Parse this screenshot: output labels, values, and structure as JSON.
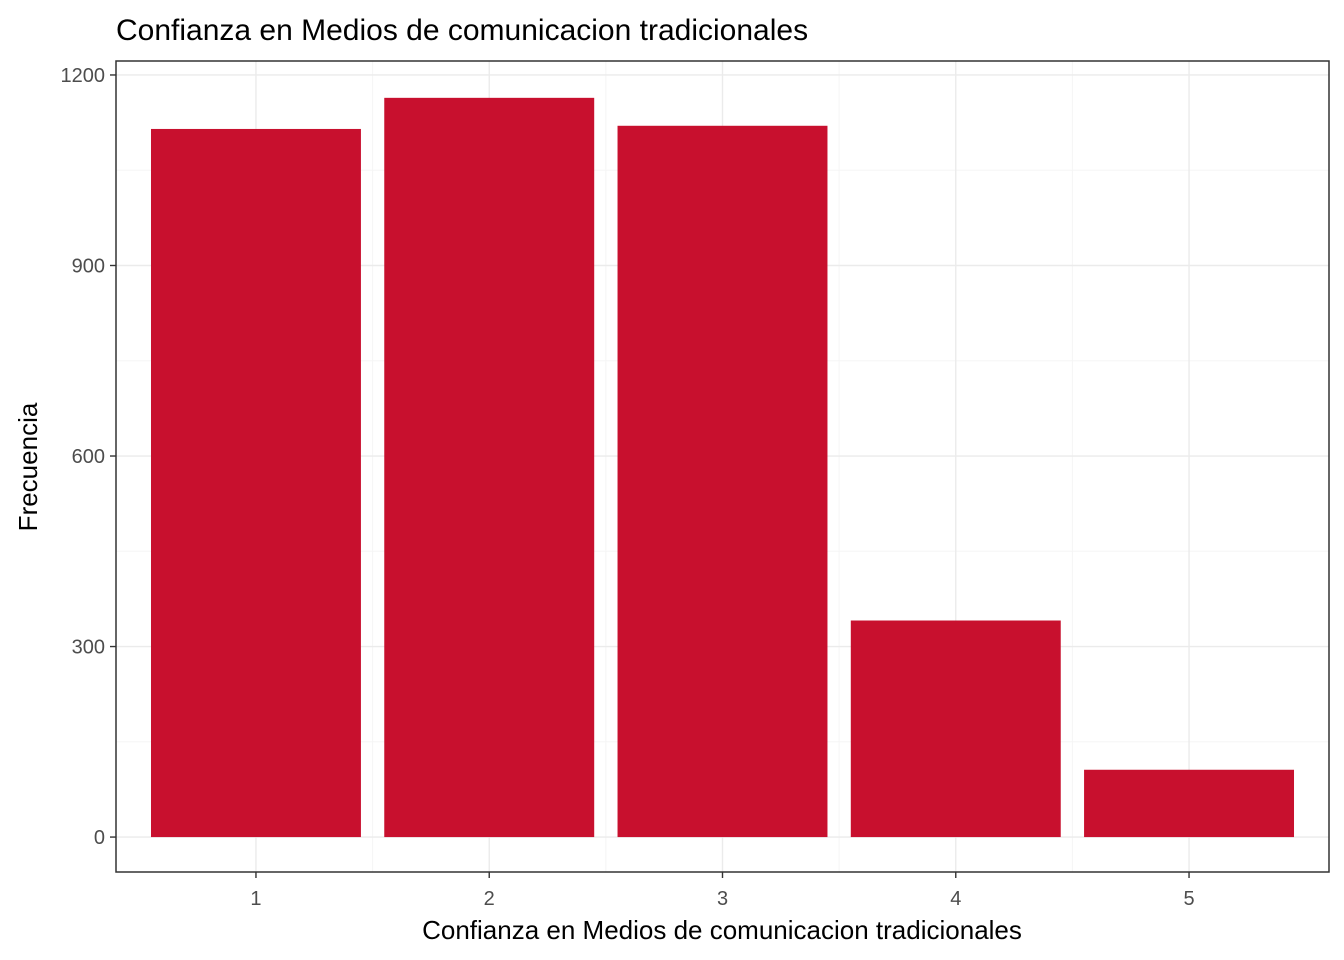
{
  "colors": {
    "bar": "#C8102E",
    "grid_major": "#EBEBEB",
    "grid_minor": "#F5F5F5",
    "panel_border": "#333333",
    "tick_text": "#4D4D4D"
  },
  "chart_data": {
    "type": "bar",
    "title": "Confianza en Medios de comunicacion tradicionales",
    "xlabel": "Confianza en Medios de comunicacion tradicionales",
    "ylabel": "Frecuencia",
    "categories": [
      "1",
      "2",
      "3",
      "4",
      "5"
    ],
    "values": [
      1115,
      1164,
      1120,
      341,
      106
    ],
    "ylim": [
      -55,
      1222
    ],
    "yticks": [
      0,
      300,
      600,
      900,
      1200
    ],
    "grid": true,
    "legend": "none"
  }
}
